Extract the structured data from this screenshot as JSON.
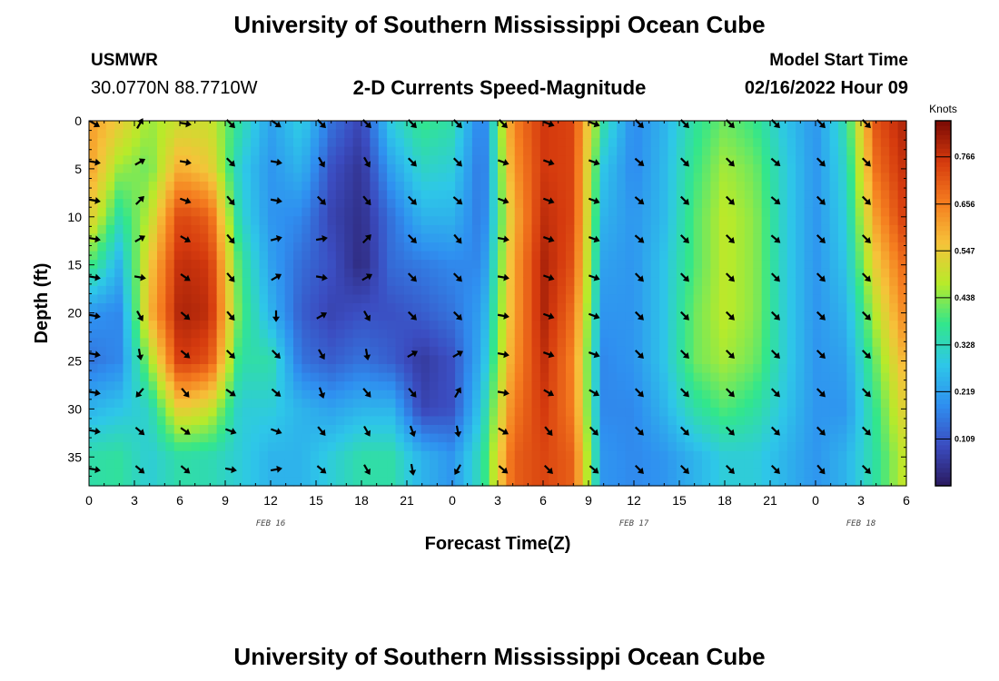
{
  "header": {
    "title": "University of Southern Mississippi Ocean Cube",
    "station": "USMWR",
    "coords": "30.0770N  88.7710W",
    "subtitle": "2-D Currents Speed-Magnitude",
    "model_start_label": "Model Start Time",
    "model_start_value": "02/16/2022 Hour 09"
  },
  "footer": {
    "title": "University of Southern Mississippi Ocean Cube"
  },
  "colors": {
    "arrow": "#000000",
    "colormap": [
      "#2a1a5e",
      "#3b4cc0",
      "#2f8ff0",
      "#2ec7e8",
      "#32e68c",
      "#b8ea2a",
      "#f6c23a",
      "#f57d1f",
      "#d53a0e",
      "#7a0a04"
    ]
  },
  "chart_data": {
    "type": "heatmap",
    "title": "2-D Currents Speed-Magnitude",
    "xlabel": "Forecast Time(Z)",
    "ylabel": "Depth (ft)",
    "x_tick_labels": [
      "0",
      "3",
      "6",
      "9",
      "12",
      "15",
      "18",
      "21",
      "0",
      "3",
      "6",
      "9",
      "12",
      "15",
      "18",
      "21",
      "0",
      "3",
      "6"
    ],
    "x_hours": [
      0,
      3,
      6,
      9,
      12,
      15,
      18,
      21,
      24,
      27,
      30,
      33,
      36,
      39,
      42,
      45,
      48,
      51,
      54
    ],
    "xlim": [
      0,
      54
    ],
    "date_labels": [
      {
        "text": "FEB 16",
        "hour": 12
      },
      {
        "text": "FEB 17",
        "hour": 36
      },
      {
        "text": "FEB 18",
        "hour": 51
      }
    ],
    "y_ticks": [
      0,
      5,
      10,
      15,
      20,
      25,
      30,
      35
    ],
    "y_tick_labels": [
      "0",
      "5",
      "10",
      "15",
      "20",
      "25",
      "30",
      "35"
    ],
    "ylim": [
      0,
      38
    ],
    "colorbar": {
      "unit": "Knots",
      "ticks": [
        0.109,
        0.219,
        0.328,
        0.438,
        0.547,
        0.656,
        0.766
      ],
      "tick_labels": [
        "0.109",
        "0.219",
        "0.328",
        "0.438",
        "0.547",
        "0.656",
        "0.766"
      ],
      "range": [
        0.0,
        0.85
      ]
    },
    "speed_profiles_knots": [
      {
        "hour": 0,
        "speeds": [
          0.62,
          0.62,
          0.55,
          0.4,
          0.2,
          0.15,
          0.25,
          0.35
        ]
      },
      {
        "hour": 2,
        "speeds": [
          0.55,
          0.45,
          0.35,
          0.25,
          0.18,
          0.18,
          0.28,
          0.36
        ]
      },
      {
        "hour": 4,
        "speeds": [
          0.45,
          0.42,
          0.48,
          0.55,
          0.58,
          0.45,
          0.32,
          0.3
        ]
      },
      {
        "hour": 6,
        "speeds": [
          0.5,
          0.6,
          0.74,
          0.78,
          0.8,
          0.76,
          0.55,
          0.35
        ]
      },
      {
        "hour": 8,
        "speeds": [
          0.5,
          0.55,
          0.7,
          0.76,
          0.78,
          0.72,
          0.5,
          0.34
        ]
      },
      {
        "hour": 10,
        "speeds": [
          0.35,
          0.3,
          0.32,
          0.38,
          0.4,
          0.35,
          0.3,
          0.3
        ]
      },
      {
        "hour": 12,
        "speeds": [
          0.22,
          0.2,
          0.2,
          0.22,
          0.25,
          0.35,
          0.3,
          0.25
        ]
      },
      {
        "hour": 14,
        "speeds": [
          0.3,
          0.25,
          0.18,
          0.14,
          0.12,
          0.15,
          0.25,
          0.25
        ]
      },
      {
        "hour": 16,
        "speeds": [
          0.15,
          0.1,
          0.08,
          0.1,
          0.08,
          0.12,
          0.22,
          0.3
        ]
      },
      {
        "hour": 18,
        "speeds": [
          0.08,
          0.05,
          0.04,
          0.03,
          0.1,
          0.15,
          0.25,
          0.35
        ]
      },
      {
        "hour": 20,
        "speeds": [
          0.3,
          0.22,
          0.15,
          0.14,
          0.1,
          0.12,
          0.25,
          0.35
        ]
      },
      {
        "hour": 22,
        "speeds": [
          0.38,
          0.32,
          0.25,
          0.16,
          0.12,
          0.06,
          0.08,
          0.25
        ]
      },
      {
        "hour": 24,
        "speeds": [
          0.35,
          0.3,
          0.25,
          0.18,
          0.15,
          0.1,
          0.1,
          0.2
        ]
      },
      {
        "hour": 26,
        "speeds": [
          0.15,
          0.14,
          0.15,
          0.18,
          0.22,
          0.25,
          0.3,
          0.35
        ]
      },
      {
        "hour": 28,
        "speeds": [
          0.65,
          0.62,
          0.58,
          0.6,
          0.6,
          0.62,
          0.66,
          0.7
        ]
      },
      {
        "hour": 30,
        "speeds": [
          0.76,
          0.76,
          0.78,
          0.8,
          0.8,
          0.78,
          0.76,
          0.74
        ]
      },
      {
        "hour": 32,
        "speeds": [
          0.74,
          0.74,
          0.74,
          0.72,
          0.68,
          0.65,
          0.66,
          0.7
        ]
      },
      {
        "hour": 34,
        "speeds": [
          0.35,
          0.28,
          0.25,
          0.22,
          0.2,
          0.18,
          0.18,
          0.2
        ]
      },
      {
        "hour": 36,
        "speeds": [
          0.18,
          0.18,
          0.2,
          0.2,
          0.2,
          0.2,
          0.18,
          0.18
        ]
      },
      {
        "hour": 38,
        "speeds": [
          0.25,
          0.26,
          0.26,
          0.28,
          0.28,
          0.28,
          0.25,
          0.2
        ]
      },
      {
        "hour": 40,
        "speeds": [
          0.36,
          0.38,
          0.4,
          0.4,
          0.42,
          0.42,
          0.35,
          0.25
        ]
      },
      {
        "hour": 42,
        "speeds": [
          0.42,
          0.46,
          0.48,
          0.48,
          0.48,
          0.46,
          0.4,
          0.3
        ]
      },
      {
        "hour": 44,
        "speeds": [
          0.38,
          0.42,
          0.44,
          0.44,
          0.44,
          0.42,
          0.36,
          0.3
        ]
      },
      {
        "hour": 46,
        "speeds": [
          0.28,
          0.3,
          0.3,
          0.3,
          0.3,
          0.3,
          0.28,
          0.25
        ]
      },
      {
        "hour": 48,
        "speeds": [
          0.2,
          0.2,
          0.2,
          0.2,
          0.2,
          0.2,
          0.2,
          0.2
        ]
      },
      {
        "hour": 50,
        "speeds": [
          0.35,
          0.32,
          0.3,
          0.28,
          0.25,
          0.22,
          0.2,
          0.25
        ]
      },
      {
        "hour": 52,
        "speeds": [
          0.72,
          0.68,
          0.62,
          0.55,
          0.48,
          0.42,
          0.38,
          0.36
        ]
      },
      {
        "hour": 54,
        "speeds": [
          0.8,
          0.78,
          0.76,
          0.7,
          0.66,
          0.6,
          0.55,
          0.5
        ]
      }
    ],
    "profile_depths_ft": [
      0,
      5,
      10,
      15,
      20,
      25,
      30,
      35
    ],
    "arrow_depths_ft": [
      0,
      4,
      8,
      12,
      16,
      20,
      24,
      28,
      32,
      36
    ],
    "arrow_hours": [
      0,
      3,
      6,
      9,
      12,
      15,
      18,
      21,
      24,
      27,
      30,
      33,
      36,
      39,
      42,
      45,
      48,
      51
    ],
    "arrow_directions_deg": [
      [
        120,
        30,
        100,
        135,
        125,
        135,
        135,
        135,
        135,
        135,
        110,
        110,
        135,
        135,
        135,
        135,
        135,
        135
      ],
      [
        100,
        60,
        100,
        135,
        100,
        150,
        150,
        135,
        135,
        110,
        110,
        110,
        130,
        135,
        135,
        130,
        135,
        135
      ],
      [
        100,
        45,
        110,
        140,
        100,
        135,
        140,
        135,
        130,
        110,
        110,
        110,
        130,
        135,
        135,
        130,
        135,
        135
      ],
      [
        100,
        60,
        120,
        140,
        75,
        80,
        45,
        135,
        140,
        100,
        110,
        110,
        130,
        135,
        135,
        130,
        135,
        135
      ],
      [
        100,
        100,
        125,
        140,
        60,
        100,
        60,
        135,
        135,
        100,
        110,
        110,
        135,
        135,
        135,
        135,
        135,
        135
      ],
      [
        100,
        150,
        130,
        140,
        180,
        60,
        150,
        135,
        135,
        100,
        110,
        110,
        135,
        135,
        135,
        135,
        135,
        135
      ],
      [
        100,
        170,
        130,
        135,
        135,
        150,
        170,
        60,
        60,
        100,
        110,
        110,
        135,
        135,
        135,
        135,
        135,
        135
      ],
      [
        100,
        220,
        140,
        125,
        130,
        160,
        140,
        140,
        30,
        100,
        120,
        120,
        135,
        135,
        135,
        135,
        135,
        135
      ],
      [
        100,
        130,
        125,
        110,
        110,
        140,
        150,
        160,
        170,
        120,
        140,
        135,
        135,
        135,
        135,
        135,
        135,
        135
      ],
      [
        100,
        130,
        130,
        100,
        80,
        130,
        150,
        170,
        210,
        130,
        135,
        130,
        135,
        135,
        135,
        135,
        140,
        135
      ]
    ]
  }
}
